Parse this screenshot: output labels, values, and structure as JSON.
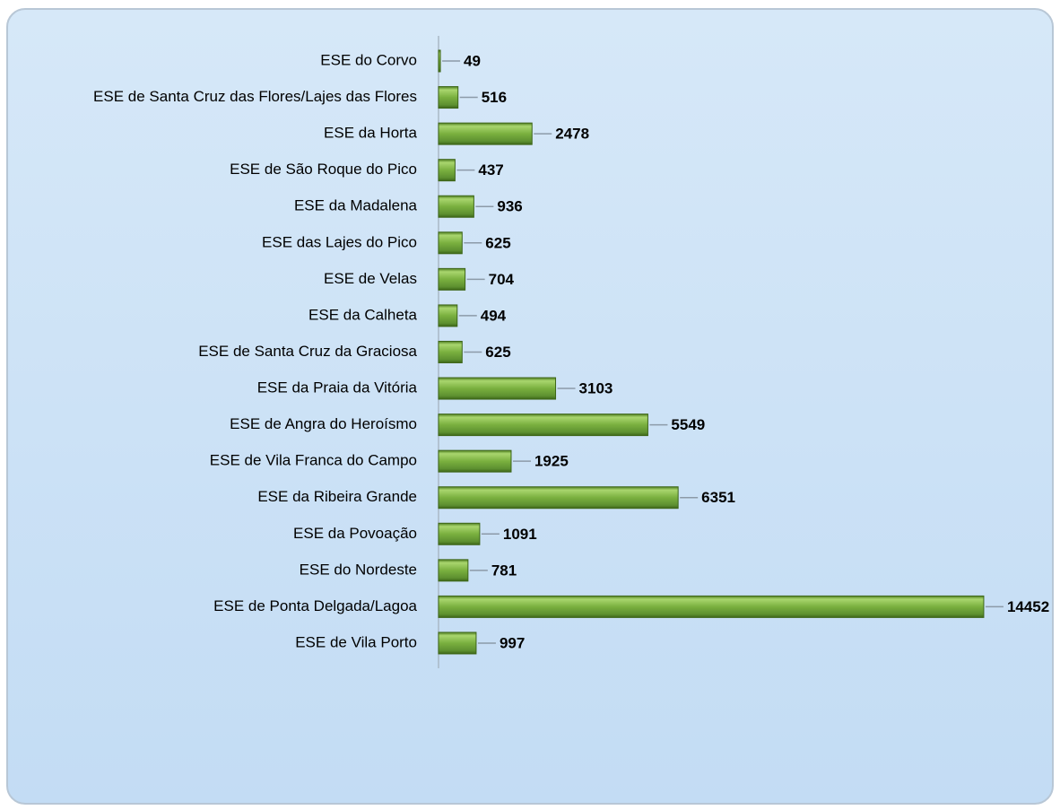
{
  "chart_data": {
    "type": "barh",
    "categories": [
      "ESE do Corvo",
      "ESE de Santa Cruz das Flores/Lajes das Flores",
      "ESE da Horta",
      "ESE de São Roque do Pico",
      "ESE da Madalena",
      "ESE das Lajes do Pico",
      "ESE de Velas",
      "ESE da Calheta",
      "ESE de Santa Cruz da Graciosa",
      "ESE da Praia da Vitória",
      "ESE de Angra do Heroísmo",
      "ESE de Vila Franca do Campo",
      "ESE da Ribeira Grande",
      "ESE da Povoação",
      "ESE do Nordeste",
      "ESE de Ponta Delgada/Lagoa",
      "ESE de Vila Porto"
    ],
    "values": [
      49,
      516,
      2478,
      437,
      936,
      625,
      704,
      494,
      625,
      3103,
      5549,
      1925,
      6351,
      1091,
      781,
      14452,
      997
    ],
    "color": "#7ab03f",
    "xlim": [
      0,
      15000
    ]
  }
}
